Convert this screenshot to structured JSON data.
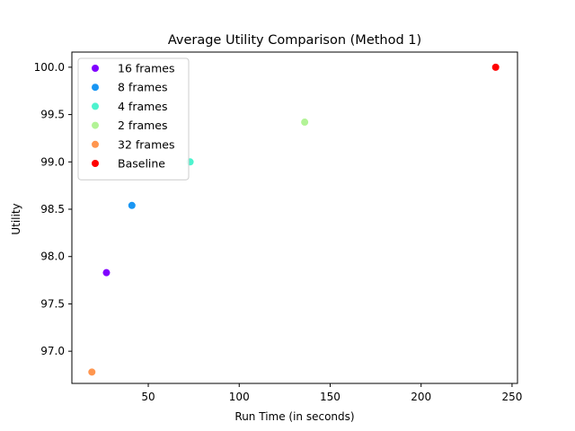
{
  "chart_data": {
    "type": "scatter",
    "title": "Average Utility Comparison (Method 1)",
    "xlabel": "Run Time (in seconds)",
    "ylabel": "Utility",
    "xlim": [
      8,
      253
    ],
    "ylim": [
      96.66,
      100.16
    ],
    "xticks": [
      50,
      100,
      150,
      200,
      250
    ],
    "yticks": [
      97.0,
      97.5,
      98.0,
      98.5,
      99.0,
      99.5,
      100.0
    ],
    "grid": false,
    "legend_position": "top-left",
    "series": [
      {
        "name": "16 frames",
        "color": "#8000ff",
        "points": [
          {
            "x": 27,
            "y": 97.83
          }
        ]
      },
      {
        "name": "8 frames",
        "color": "#1996f3",
        "points": [
          {
            "x": 41,
            "y": 98.54
          }
        ]
      },
      {
        "name": "4 frames",
        "color": "#4df3ce",
        "points": [
          {
            "x": 73,
            "y": 99.0
          }
        ]
      },
      {
        "name": "2 frames",
        "color": "#b2f396",
        "points": [
          {
            "x": 136,
            "y": 99.42
          }
        ]
      },
      {
        "name": "32 frames",
        "color": "#ff964f",
        "points": [
          {
            "x": 19,
            "y": 96.78
          }
        ]
      },
      {
        "name": "Baseline",
        "color": "#ff0000",
        "points": [
          {
            "x": 241,
            "y": 100.0
          }
        ]
      }
    ]
  }
}
